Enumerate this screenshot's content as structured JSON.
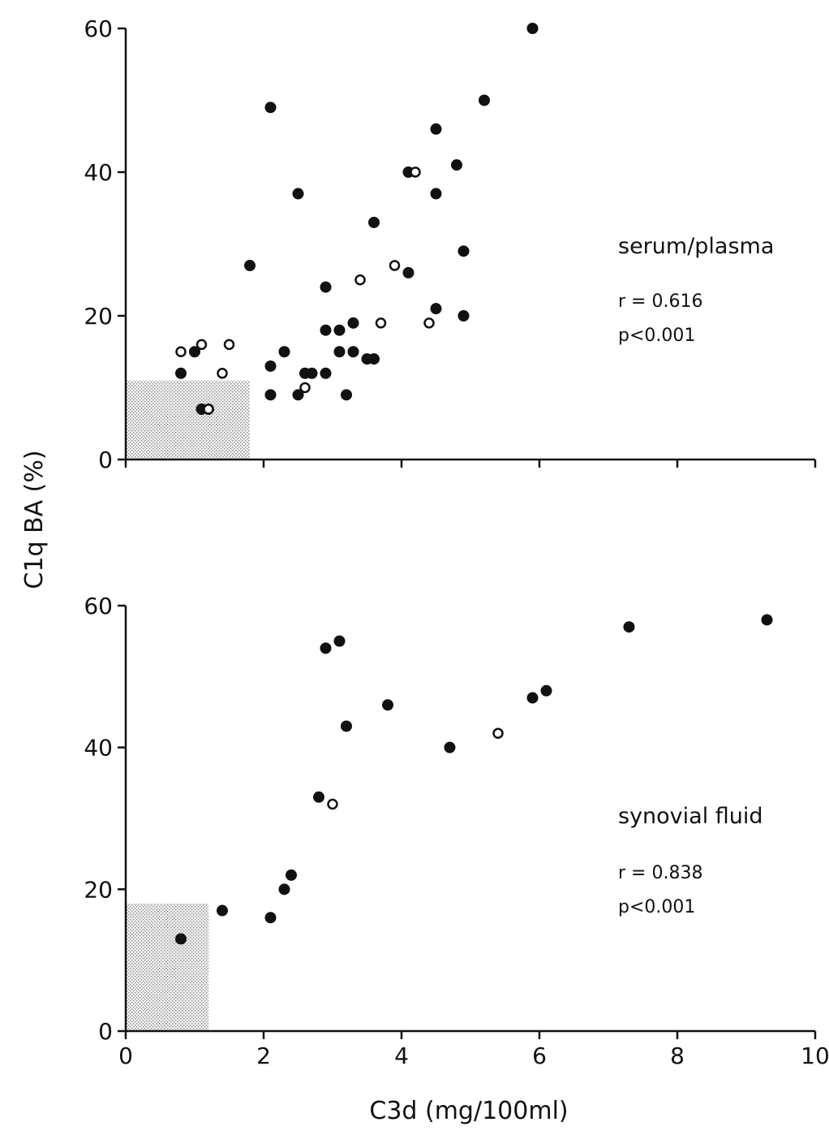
{
  "colors": {
    "ink": "#111111",
    "reference_region_fill": "#d8d8d8",
    "open_marker_fill": "#ffffff"
  },
  "chart_data": [
    {
      "type": "scatter",
      "panel": "top",
      "annotation": "serum/plasma",
      "stat_r": "r = 0.616",
      "stat_p": "p<0.001",
      "ylabel": "C1q BA (%)",
      "xlim": [
        0,
        10
      ],
      "ylim": [
        0,
        60
      ],
      "yticks": [
        "0",
        "20",
        "40",
        "60"
      ],
      "xticks": [
        0,
        2,
        4,
        6,
        8,
        10
      ],
      "x_tick_labels_shown": false,
      "reference_region": {
        "x": [
          0,
          1.8
        ],
        "y": [
          0,
          11
        ]
      },
      "series": [
        {
          "marker": "filled-circle",
          "points": [
            [
              0.8,
              12
            ],
            [
              1.0,
              15
            ],
            [
              1.1,
              7
            ],
            [
              1.2,
              7
            ],
            [
              1.8,
              27
            ],
            [
              2.1,
              49
            ],
            [
              2.1,
              13
            ],
            [
              2.1,
              9
            ],
            [
              2.3,
              15
            ],
            [
              2.5,
              37
            ],
            [
              2.5,
              9
            ],
            [
              2.6,
              12
            ],
            [
              2.7,
              12
            ],
            [
              2.9,
              24
            ],
            [
              2.9,
              18
            ],
            [
              2.9,
              12
            ],
            [
              3.1,
              18
            ],
            [
              3.1,
              15
            ],
            [
              3.2,
              9
            ],
            [
              3.3,
              19
            ],
            [
              3.3,
              15
            ],
            [
              3.5,
              14
            ],
            [
              3.6,
              33
            ],
            [
              3.6,
              14
            ],
            [
              4.1,
              40
            ],
            [
              4.1,
              26
            ],
            [
              4.5,
              46
            ],
            [
              4.5,
              37
            ],
            [
              4.5,
              21
            ],
            [
              4.8,
              41
            ],
            [
              4.9,
              29
            ],
            [
              4.9,
              20
            ],
            [
              5.2,
              50
            ],
            [
              5.9,
              60
            ]
          ]
        },
        {
          "marker": "open-circle",
          "points": [
            [
              0.8,
              15
            ],
            [
              1.1,
              16
            ],
            [
              1.2,
              7
            ],
            [
              1.4,
              12
            ],
            [
              1.5,
              16
            ],
            [
              2.6,
              10
            ],
            [
              3.4,
              25
            ],
            [
              3.7,
              19
            ],
            [
              3.9,
              27
            ],
            [
              4.2,
              40
            ],
            [
              4.4,
              19
            ]
          ]
        }
      ]
    },
    {
      "type": "scatter",
      "panel": "bottom",
      "annotation": "synovial fluid",
      "stat_r": "r = 0.838",
      "stat_p": "p<0.001",
      "xlabel": "C3d (mg/100ml)",
      "xlim": [
        0,
        10
      ],
      "ylim": [
        0,
        60
      ],
      "yticks": [
        "0",
        "20",
        "40",
        "60"
      ],
      "xticks": [
        "0",
        "2",
        "4",
        "6",
        "8",
        "10"
      ],
      "reference_region": {
        "x": [
          0,
          1.2
        ],
        "y": [
          0,
          18
        ]
      },
      "series": [
        {
          "marker": "filled-circle",
          "points": [
            [
              0.8,
              13
            ],
            [
              1.4,
              17
            ],
            [
              2.1,
              16
            ],
            [
              2.3,
              20
            ],
            [
              2.4,
              22
            ],
            [
              2.8,
              33
            ],
            [
              2.9,
              54
            ],
            [
              3.1,
              55
            ],
            [
              3.2,
              43
            ],
            [
              3.8,
              46
            ],
            [
              4.7,
              40
            ],
            [
              5.9,
              47
            ],
            [
              6.1,
              48
            ],
            [
              7.3,
              57
            ],
            [
              9.3,
              58
            ]
          ]
        },
        {
          "marker": "open-circle",
          "points": [
            [
              3.0,
              32
            ],
            [
              5.4,
              42
            ]
          ]
        }
      ]
    }
  ]
}
